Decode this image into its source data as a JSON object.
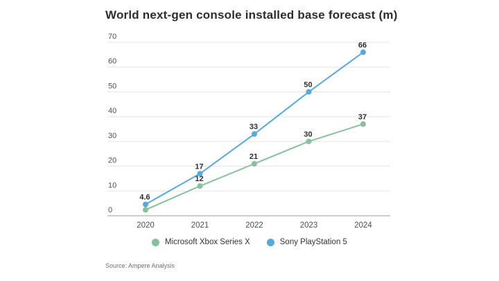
{
  "title": "World next-gen console installed base forecast (m)",
  "source": "Source: Ampere Analysis",
  "colors": {
    "xbox_green": "#87C09F",
    "ps5_blue": "#55A9DD",
    "gridline": "#e3e3e3",
    "axis_line": "#9b9b9b",
    "tick_label": "#4f4f4f",
    "data_label": "#2d2d2d"
  },
  "legend": [
    {
      "label": "Microsoft Xbox Series X",
      "color": "#87C09F"
    },
    {
      "label": "Sony PlayStation 5",
      "color": "#55A9DD"
    }
  ],
  "chart_data": {
    "type": "line",
    "title": "World next-gen console installed base forecast (m)",
    "x": [
      "2020",
      "2021",
      "2022",
      "2023",
      "2024"
    ],
    "series": [
      {
        "name": "Microsoft Xbox Series X",
        "color": "#87C09F",
        "values": [
          2.4,
          12,
          21,
          30,
          37
        ],
        "labels": [
          "",
          "12",
          "21",
          "30",
          "37"
        ]
      },
      {
        "name": "Sony PlayStation 5",
        "color": "#55A9DD",
        "values": [
          4.6,
          17,
          33,
          50,
          66
        ],
        "labels": [
          "4.6",
          "17",
          "33",
          "50",
          "66"
        ]
      }
    ],
    "xlabel": "",
    "ylabel": "",
    "ylim": [
      0,
      70
    ],
    "yticks": [
      0,
      10,
      20,
      30,
      40,
      50,
      60,
      70
    ],
    "grid": true,
    "legend_position": "bottom"
  }
}
